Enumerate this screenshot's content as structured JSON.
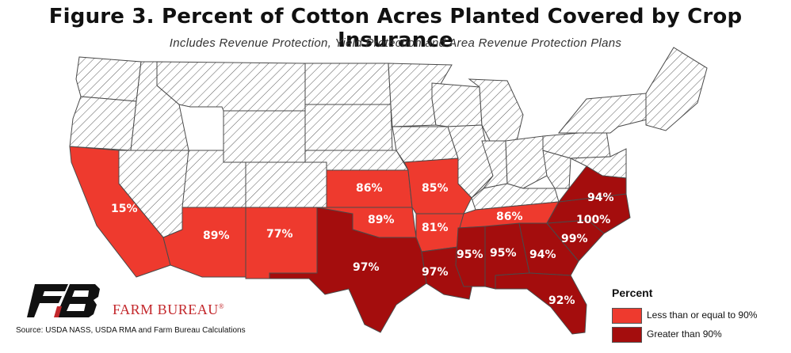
{
  "title": "Figure 3. Percent of Cotton Acres Planted Covered by Crop Insurance",
  "subtitle": "Includes Revenue Protection, Yield Protection and Area Revenue Protection Plans",
  "colors": {
    "low": "#ee3a2e",
    "high": "#a40d0d",
    "none_fill": "#ffffff",
    "hatch": "#5a5a5a",
    "border": "#4a4a4a"
  },
  "legend": {
    "title": "Percent",
    "items": [
      {
        "label": "Less than or equal to 90%",
        "color": "#ee3a2e"
      },
      {
        "label": "Greater than 90%",
        "color": "#a40d0d"
      }
    ]
  },
  "map_data": {
    "states": [
      {
        "state": "CA",
        "value": "15%",
        "category": "low"
      },
      {
        "state": "AZ",
        "value": "89%",
        "category": "low"
      },
      {
        "state": "NM",
        "value": "77%",
        "category": "low"
      },
      {
        "state": "TX",
        "value": "97%",
        "category": "high"
      },
      {
        "state": "KS",
        "value": "86%",
        "category": "low"
      },
      {
        "state": "OK",
        "value": "89%",
        "category": "low"
      },
      {
        "state": "MO",
        "value": "85%",
        "category": "low"
      },
      {
        "state": "AR",
        "value": "81%",
        "category": "low"
      },
      {
        "state": "LA",
        "value": "97%",
        "category": "high"
      },
      {
        "state": "MS",
        "value": "95%",
        "category": "high"
      },
      {
        "state": "AL",
        "value": "95%",
        "category": "high"
      },
      {
        "state": "TN",
        "value": "86%",
        "category": "low"
      },
      {
        "state": "GA",
        "value": "94%",
        "category": "high"
      },
      {
        "state": "FL",
        "value": "92%",
        "category": "high"
      },
      {
        "state": "SC",
        "value": "99%",
        "category": "high"
      },
      {
        "state": "NC",
        "value": "100%",
        "category": "high"
      },
      {
        "state": "VA",
        "value": "94%",
        "category": "high"
      }
    ]
  },
  "brand": {
    "name": "FARM BUREAU",
    "reg_mark": "®"
  },
  "source": "Source: USDA NASS, USDA RMA and Farm Bureau Calculations"
}
